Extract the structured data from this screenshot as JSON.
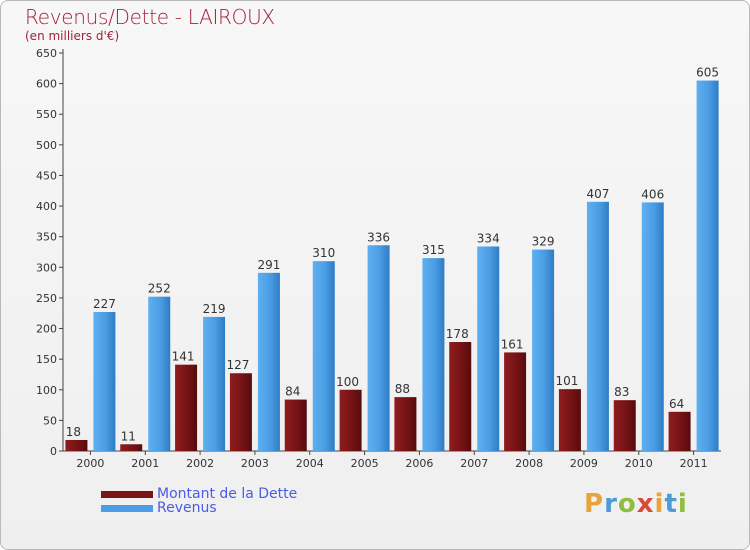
{
  "chart_data": {
    "type": "bar",
    "title": "Revenus/Dette - LAIROUX",
    "subtitle": "(en milliers d'€)",
    "categories": [
      "2000",
      "2001",
      "2002",
      "2003",
      "2004",
      "2005",
      "2006",
      "2007",
      "2008",
      "2009",
      "2010",
      "2011"
    ],
    "series": [
      {
        "name": "Montant de la Dette",
        "color": "#7b1416",
        "values": [
          18,
          11,
          141,
          127,
          84,
          100,
          88,
          178,
          161,
          101,
          83,
          64
        ]
      },
      {
        "name": "Revenus",
        "color": "#4d9ee6",
        "values": [
          227,
          252,
          219,
          291,
          310,
          336,
          315,
          334,
          329,
          407,
          406,
          605
        ]
      }
    ],
    "ylim": [
      0,
      650
    ],
    "yticks": [
      0,
      50,
      100,
      150,
      200,
      250,
      300,
      350,
      400,
      450,
      500,
      550,
      600,
      650
    ],
    "grid": false,
    "legend": "bottom-left"
  },
  "logo": {
    "text": "Proxiti",
    "letters": [
      "P",
      "r",
      "o",
      "x",
      "i",
      "t",
      "i"
    ]
  }
}
